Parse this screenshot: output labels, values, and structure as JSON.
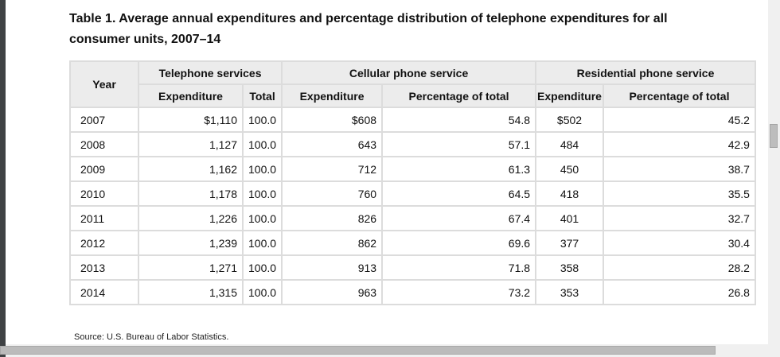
{
  "title": "Table 1. Average annual expenditures and percentage distribution of telephone expenditures for all consumer units, 2007–14",
  "headers": {
    "year": "Year",
    "telephone": "Telephone services",
    "cellular": "Cellular phone service",
    "residential": "Residential phone service",
    "expenditure": "Expenditure",
    "total": "Total",
    "pct": "Percentage of total"
  },
  "rows": [
    [
      "2007",
      "$1,110",
      "100.0",
      "$608",
      "54.8",
      "$502",
      "45.2"
    ],
    [
      "2008",
      "1,127",
      "100.0",
      "643",
      "57.1",
      "484",
      "42.9"
    ],
    [
      "2009",
      "1,162",
      "100.0",
      "712",
      "61.3",
      "450",
      "38.7"
    ],
    [
      "2010",
      "1,178",
      "100.0",
      "760",
      "64.5",
      "418",
      "35.5"
    ],
    [
      "2011",
      "1,226",
      "100.0",
      "826",
      "67.4",
      "401",
      "32.7"
    ],
    [
      "2012",
      "1,239",
      "100.0",
      "862",
      "69.6",
      "377",
      "30.4"
    ],
    [
      "2013",
      "1,271",
      "100.0",
      "913",
      "71.8",
      "358",
      "28.2"
    ],
    [
      "2014",
      "1,315",
      "100.0",
      "963",
      "73.2",
      "353",
      "26.8"
    ]
  ],
  "source": "Source: U.S. Bureau of Labor Statistics."
}
